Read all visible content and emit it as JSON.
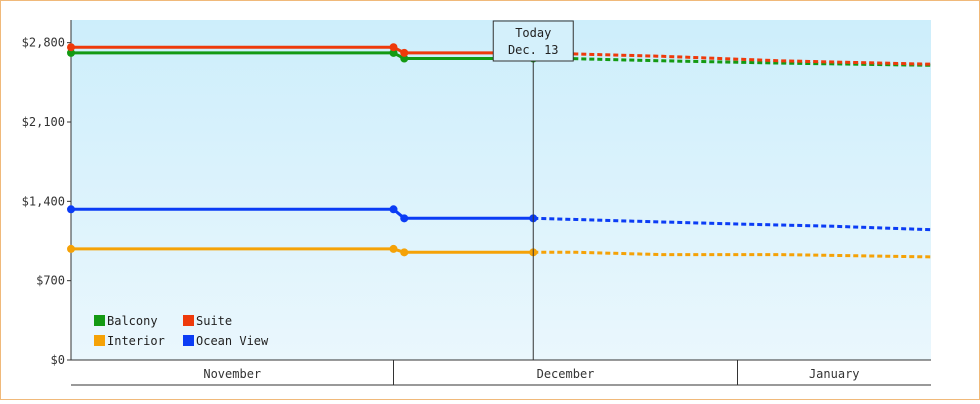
{
  "chart_data": {
    "type": "line",
    "title": "",
    "xlabel": "",
    "ylabel": "",
    "ylim": [
      0,
      3000
    ],
    "yticks": [
      {
        "value": 0,
        "label": "$0"
      },
      {
        "value": 700,
        "label": "$700"
      },
      {
        "value": 1400,
        "label": "$1,400"
      },
      {
        "value": 2100,
        "label": "$2,100"
      },
      {
        "value": 2800,
        "label": "$2,800"
      }
    ],
    "x_range": [
      "2023-10-31",
      "2024-01-19"
    ],
    "month_bands": [
      {
        "label": "November",
        "start": "2023-10-31",
        "end": "2023-11-30"
      },
      {
        "label": "December",
        "start": "2023-11-30",
        "end": "2024-01-01"
      },
      {
        "label": "January",
        "start": "2024-01-01",
        "end": "2024-01-19"
      }
    ],
    "today": {
      "date": "2023-12-13",
      "label_line1": "Today",
      "label_line2": "Dec. 13"
    },
    "legend_position": "bottom-left",
    "background_gradient": [
      "#cdeefb",
      "#eaf7fd"
    ],
    "series": [
      {
        "name": "Balcony",
        "color": "#139a13",
        "actual": [
          {
            "x": "2023-10-31",
            "y": 2710
          },
          {
            "x": "2023-11-30",
            "y": 2710
          },
          {
            "x": "2023-12-01",
            "y": 2660
          },
          {
            "x": "2023-12-13",
            "y": 2660
          }
        ],
        "forecast": [
          {
            "x": "2023-12-13",
            "y": 2660
          },
          {
            "x": "2023-12-16",
            "y": 2660
          },
          {
            "x": "2023-12-25",
            "y": 2640
          },
          {
            "x": "2024-01-05",
            "y": 2620
          },
          {
            "x": "2024-01-19",
            "y": 2600
          }
        ]
      },
      {
        "name": "Suite",
        "color": "#ee3a0b",
        "actual": [
          {
            "x": "2023-10-31",
            "y": 2760
          },
          {
            "x": "2023-11-30",
            "y": 2760
          },
          {
            "x": "2023-12-01",
            "y": 2710
          },
          {
            "x": "2023-12-13",
            "y": 2710
          }
        ],
        "forecast": [
          {
            "x": "2023-12-13",
            "y": 2710
          },
          {
            "x": "2023-12-17",
            "y": 2700
          },
          {
            "x": "2023-12-25",
            "y": 2680
          },
          {
            "x": "2024-01-05",
            "y": 2640
          },
          {
            "x": "2024-01-19",
            "y": 2610
          }
        ]
      },
      {
        "name": "Interior",
        "color": "#f5a207",
        "actual": [
          {
            "x": "2023-10-31",
            "y": 980
          },
          {
            "x": "2023-11-30",
            "y": 980
          },
          {
            "x": "2023-12-01",
            "y": 950
          },
          {
            "x": "2023-12-13",
            "y": 950
          }
        ],
        "forecast": [
          {
            "x": "2023-12-13",
            "y": 950
          },
          {
            "x": "2023-12-17",
            "y": 950
          },
          {
            "x": "2023-12-25",
            "y": 930
          },
          {
            "x": "2024-01-05",
            "y": 930
          },
          {
            "x": "2024-01-19",
            "y": 910
          }
        ]
      },
      {
        "name": "Ocean View",
        "color": "#0b3cf5",
        "actual": [
          {
            "x": "2023-10-31",
            "y": 1330
          },
          {
            "x": "2023-11-30",
            "y": 1330
          },
          {
            "x": "2023-12-01",
            "y": 1250
          },
          {
            "x": "2023-12-13",
            "y": 1250
          }
        ],
        "forecast": [
          {
            "x": "2023-12-13",
            "y": 1250
          },
          {
            "x": "2023-12-17",
            "y": 1240
          },
          {
            "x": "2023-12-24",
            "y": 1220
          },
          {
            "x": "2024-01-01",
            "y": 1200
          },
          {
            "x": "2024-01-10",
            "y": 1180
          },
          {
            "x": "2024-01-19",
            "y": 1150
          }
        ]
      }
    ]
  }
}
